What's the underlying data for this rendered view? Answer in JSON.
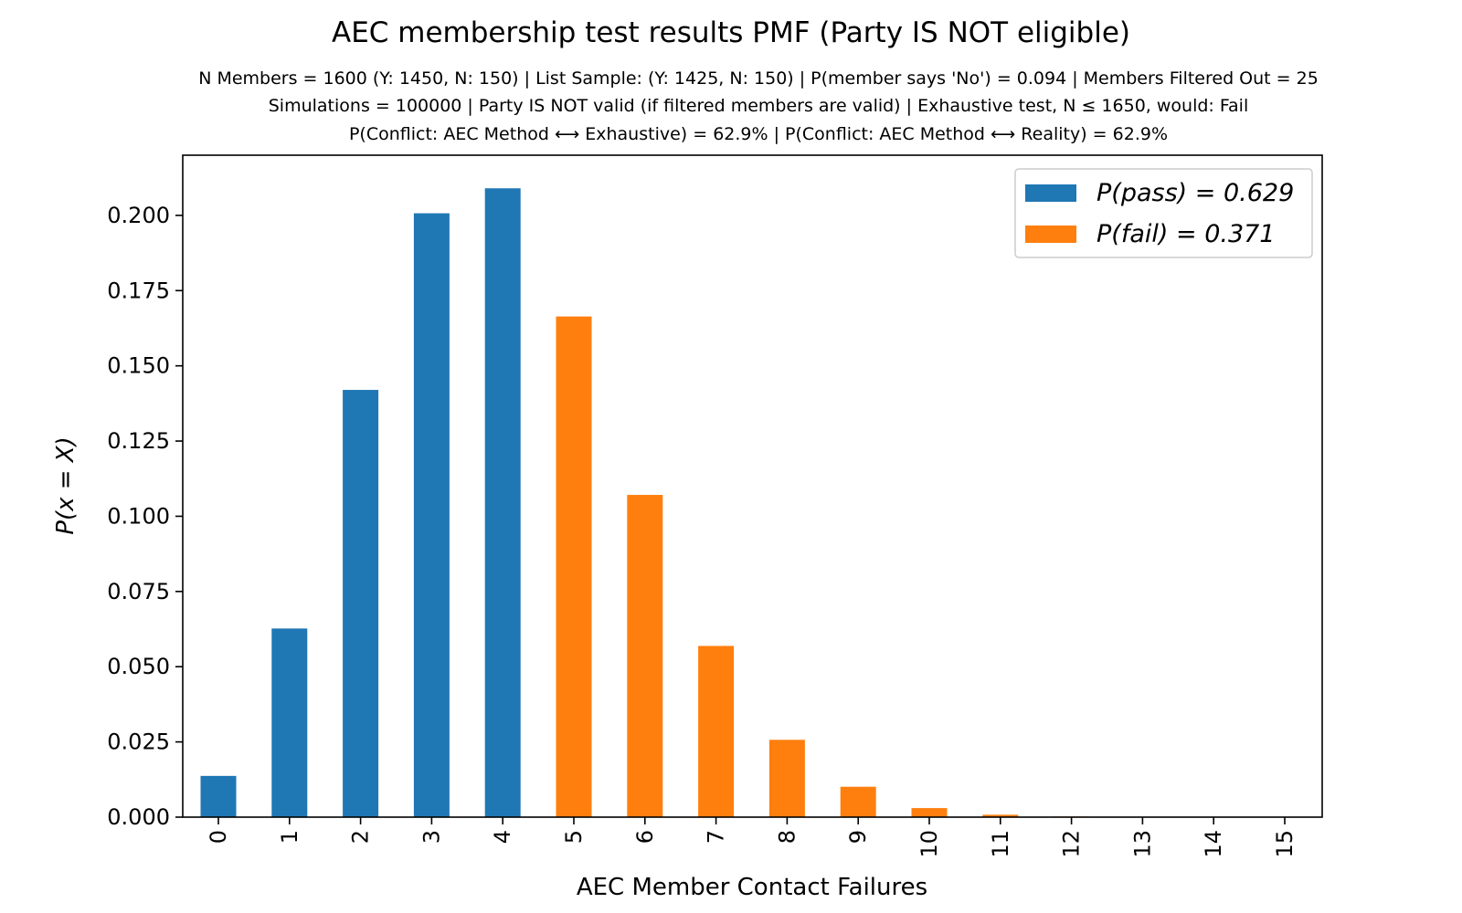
{
  "chart_data": {
    "type": "bar",
    "title": "AEC membership test results PMF (Party IS NOT eligible)",
    "subtitle_lines": [
      "N Members = 1600 (Y: 1450, N: 150) | List Sample: (Y: 1425, N: 150) | P(member says 'No') = 0.094 | Members Filtered Out = 25",
      "Simulations = 100000 | Party IS NOT valid (if filtered members are valid) | Exhaustive test, N ≤ 1650, would: Fail",
      "P(Conflict: AEC Method ⟷ Exhaustive) = 62.9% | P(Conflict: AEC Method ⟷ Reality) = 62.9%"
    ],
    "xlabel": "AEC Member Contact Failures",
    "ylabel": "P(x = X)",
    "categories": [
      "0",
      "1",
      "2",
      "3",
      "4",
      "5",
      "6",
      "7",
      "8",
      "9",
      "10",
      "11",
      "12",
      "13",
      "14",
      "15"
    ],
    "values": [
      0.0137,
      0.0627,
      0.142,
      0.2007,
      0.209,
      0.1664,
      0.1071,
      0.0569,
      0.0257,
      0.0101,
      0.003,
      0.0008,
      0.0002,
      5e-05,
      1e-05,
      0.0
    ],
    "bar_groups": [
      "pass",
      "pass",
      "pass",
      "pass",
      "pass",
      "fail",
      "fail",
      "fail",
      "fail",
      "fail",
      "fail",
      "fail",
      "fail",
      "fail",
      "fail",
      "fail"
    ],
    "ylim": [
      0,
      0.22
    ],
    "yticks": [
      "0.000",
      "0.025",
      "0.050",
      "0.075",
      "0.100",
      "0.125",
      "0.150",
      "0.175",
      "0.200"
    ],
    "grid": false,
    "legend_position": "top-right",
    "legend": [
      {
        "key": "pass",
        "label": "P(pass) = 0.629",
        "color": "#1f77b4"
      },
      {
        "key": "fail",
        "label": "P(fail) = 0.371",
        "color": "#ff7f0e"
      }
    ]
  }
}
